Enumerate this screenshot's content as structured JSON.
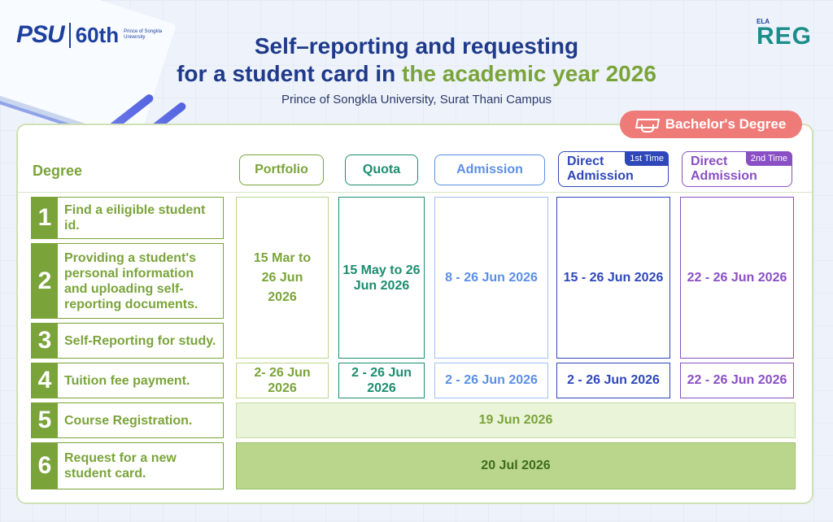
{
  "branding": {
    "psu_logo": "PSU",
    "psu_anniversary": "60th",
    "psu_logo_sub": "Prince of Songkla University",
    "reg_logo_small": "ELA",
    "reg_logo": "REG"
  },
  "title": {
    "line1": "Self–reporting and requesting",
    "line2_prefix": "for a student card in ",
    "line2_accent": "the academic year 2026"
  },
  "subtitle": "Prince of Songkla University, Surat Thani Campus",
  "badge": {
    "label": "Bachelor's Degree",
    "icon": "graduation-cap-icon"
  },
  "table": {
    "degree_label": "Degree",
    "columns": [
      {
        "label": "Portfolio",
        "color": "#7aa43a"
      },
      {
        "label": "Quota",
        "color": "#1b8d6e"
      },
      {
        "label": "Admission",
        "color": "#5b8fe6"
      },
      {
        "label_line1": "Direct",
        "label_line2": "Admission",
        "tag": "1st Time",
        "color": "#2f47b8"
      },
      {
        "label_line1": "Direct",
        "label_line2": "Admission",
        "tag": "2nd Time",
        "color": "#8a4fc4"
      }
    ],
    "steps": [
      {
        "num": "1",
        "label": "Find a eiligible student id."
      },
      {
        "num": "2",
        "label": "Providing a student's personal information and uploading self-reporting documents."
      },
      {
        "num": "3",
        "label": "Self-Reporting for study."
      },
      {
        "num": "4",
        "label": "Tuition fee payment."
      },
      {
        "num": "5",
        "label": "Course Registration."
      },
      {
        "num": "6",
        "label": "Request for a new student card."
      }
    ],
    "steps_1_3": {
      "portfolio": "15 Mar to 26 Jun 2026",
      "quota": "15 May to 26 Jun 2026",
      "admission": "8 - 26 Jun 2026",
      "direct1": "15 - 26 Jun 2026",
      "direct2": "22 - 26 Jun 2026"
    },
    "step_4": {
      "portfolio": "2- 26 Jun 2026",
      "quota": "2 - 26 Jun 2026",
      "admission": "2 - 26 Jun 2026",
      "direct1": "2 - 26 Jun 2026",
      "direct2": "22 - 26 Jun 2026"
    },
    "step_5": "19 Jun 2026",
    "step_6": "20 Jul 2026"
  }
}
